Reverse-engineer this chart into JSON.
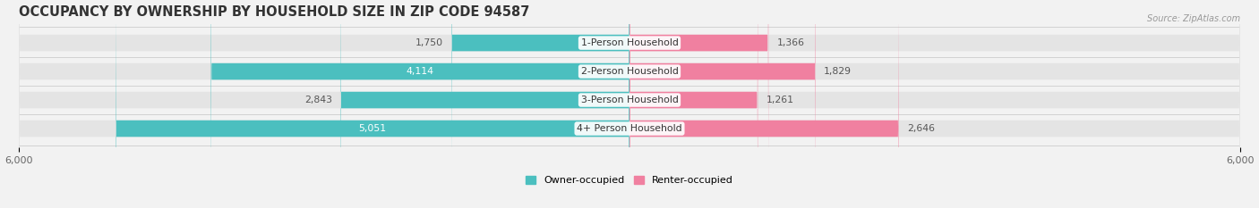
{
  "title": "OCCUPANCY BY OWNERSHIP BY HOUSEHOLD SIZE IN ZIP CODE 94587",
  "source": "Source: ZipAtlas.com",
  "categories": [
    "1-Person Household",
    "2-Person Household",
    "3-Person Household",
    "4+ Person Household"
  ],
  "owner_values": [
    1750,
    4114,
    2843,
    5051
  ],
  "renter_values": [
    1366,
    1829,
    1261,
    2646
  ],
  "owner_color": "#4BBFBF",
  "renter_color": "#F080A0",
  "background_color": "#f2f2f2",
  "bar_background": "#e4e4e4",
  "axis_max": 6000,
  "legend_owner": "Owner-occupied",
  "legend_renter": "Renter-occupied",
  "title_fontsize": 10.5,
  "tick_fontsize": 8,
  "cat_fontsize": 7.8,
  "val_fontsize": 7.8,
  "owner_label_inside": [
    false,
    true,
    false,
    true
  ],
  "owner_label_colors": [
    "#555555",
    "white",
    "#555555",
    "white"
  ],
  "renter_label_colors": [
    "#555555",
    "#555555",
    "#555555",
    "#555555"
  ]
}
